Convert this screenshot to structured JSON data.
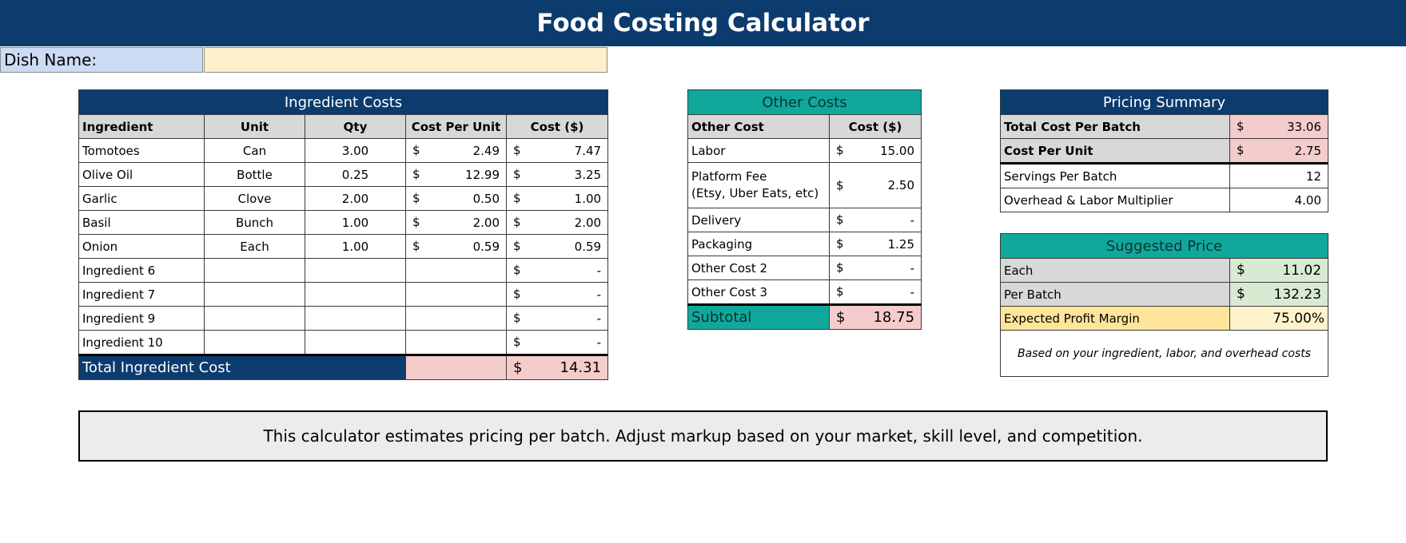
{
  "title": "Food Costing Calculator",
  "dish": {
    "label": "Dish Name:",
    "value": ""
  },
  "ingredients": {
    "header": "Ingredient Costs",
    "columns": [
      "Ingredient",
      "Unit",
      "Qty",
      "Cost Per Unit",
      "Cost ($)"
    ],
    "rows": [
      {
        "name": "Tomotoes",
        "unit": "Can",
        "qty": "3.00",
        "cpu_sym": "$",
        "cpu": "2.49",
        "cost_sym": "$",
        "cost": "7.47"
      },
      {
        "name": "Olive Oil",
        "unit": "Bottle",
        "qty": "0.25",
        "cpu_sym": "$",
        "cpu": "12.99",
        "cost_sym": "$",
        "cost": "3.25"
      },
      {
        "name": "Garlic",
        "unit": "Clove",
        "qty": "2.00",
        "cpu_sym": "$",
        "cpu": "0.50",
        "cost_sym": "$",
        "cost": "1.00"
      },
      {
        "name": "Basil",
        "unit": "Bunch",
        "qty": "1.00",
        "cpu_sym": "$",
        "cpu": "2.00",
        "cost_sym": "$",
        "cost": "2.00"
      },
      {
        "name": "Onion",
        "unit": "Each",
        "qty": "1.00",
        "cpu_sym": "$",
        "cpu": "0.59",
        "cost_sym": "$",
        "cost": "0.59"
      },
      {
        "name": "Ingredient 6",
        "unit": "",
        "qty": "",
        "cpu_sym": "",
        "cpu": "",
        "cost_sym": "$",
        "cost": "-"
      },
      {
        "name": "Ingredient 7",
        "unit": "",
        "qty": "",
        "cpu_sym": "",
        "cpu": "",
        "cost_sym": "$",
        "cost": "-"
      },
      {
        "name": "Ingredient 9",
        "unit": "",
        "qty": "",
        "cpu_sym": "",
        "cpu": "",
        "cost_sym": "$",
        "cost": "-"
      },
      {
        "name": "Ingredient 10",
        "unit": "",
        "qty": "",
        "cpu_sym": "",
        "cpu": "",
        "cost_sym": "$",
        "cost": "-"
      }
    ],
    "total_label": "Total Ingredient Cost",
    "total_sym": "$",
    "total_value": "14.31"
  },
  "other_costs": {
    "header": "Other Costs",
    "columns": [
      "Other Cost",
      "Cost ($)"
    ],
    "rows": [
      {
        "name": "Labor",
        "sym": "$",
        "value": "15.00"
      },
      {
        "name": "Platform Fee",
        "name2": "(Etsy, Uber Eats, etc)",
        "sym": "$",
        "value": "2.50"
      },
      {
        "name": "Delivery",
        "sym": "$",
        "value": "-"
      },
      {
        "name": "Packaging",
        "sym": "$",
        "value": "1.25"
      },
      {
        "name": "Other Cost 2",
        "sym": "$",
        "value": "-"
      },
      {
        "name": "Other Cost 3",
        "sym": "$",
        "value": "-"
      }
    ],
    "subtotal_label": "Subtotal",
    "subtotal_sym": "$",
    "subtotal_value": "18.75"
  },
  "pricing_summary": {
    "header": "Pricing Summary",
    "total_cost_label": "Total Cost Per Batch",
    "total_cost_sym": "$",
    "total_cost_value": "33.06",
    "cost_unit_label": "Cost Per Unit",
    "cost_unit_sym": "$",
    "cost_unit_value": "2.75",
    "servings_label": "Servings Per Batch",
    "servings_value": "12",
    "multiplier_label": "Overhead & Labor Multiplier",
    "multiplier_value": "4.00"
  },
  "suggested_price": {
    "header": "Suggested Price",
    "each_label": "Each",
    "each_sym": "$",
    "each_value": "11.02",
    "batch_label": "Per Batch",
    "batch_sym": "$",
    "batch_value": "132.23",
    "margin_label": "Expected Profit Margin",
    "margin_value": "75.00%",
    "note": "Based on your ingredient, labor, and overhead costs"
  },
  "footer_note": "This calculator estimates pricing per batch. Adjust markup based on your market, skill level, and competition.",
  "colors": {
    "navy": "#0c3b6e",
    "teal": "#11a89c",
    "pink": "#f4cccc",
    "green": "#d9ead3",
    "gold": "#ffe599",
    "label_blue": "#cddcf5",
    "input_cream": "#fff0cb"
  }
}
